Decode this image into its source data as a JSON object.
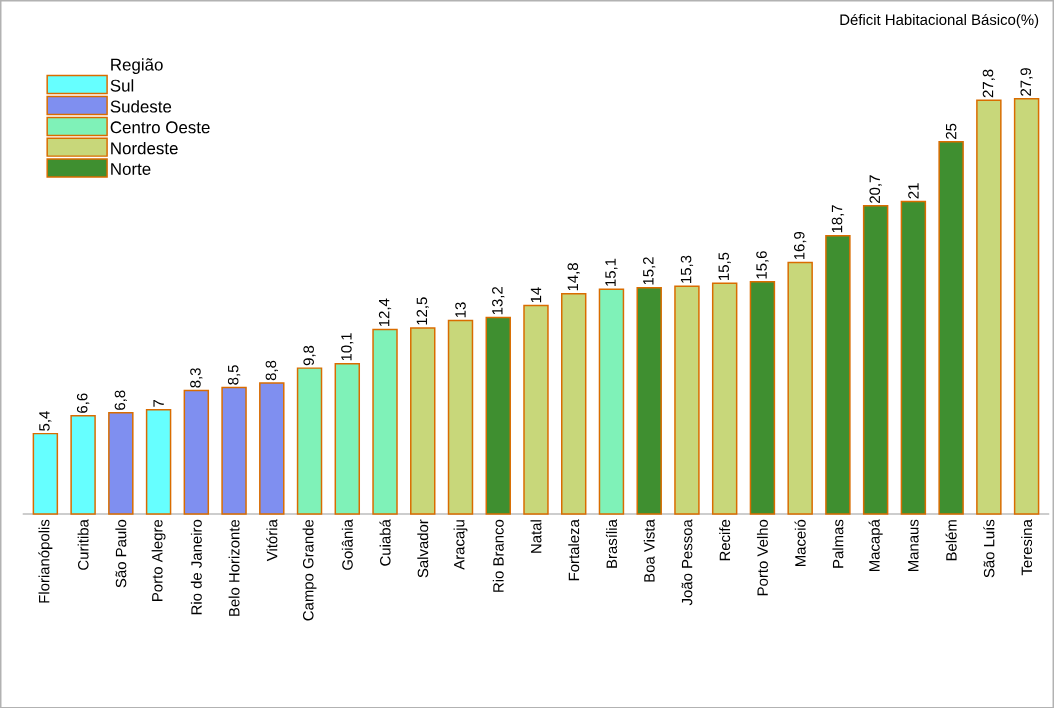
{
  "chart_data": {
    "type": "bar",
    "title": "Déficit Habitacional Básico(%)",
    "legend_title": "Região",
    "legend": "top left",
    "categories": [
      "Florianópolis",
      "Curitiba",
      "São Paulo",
      "Porto Alegre",
      "Rio de Janeiro",
      "Belo Horizonte",
      "Vitória",
      "Campo Grande",
      "Goiânia",
      "Cuiabá",
      "Salvador",
      "Aracaju",
      "Rio Branco",
      "Natal",
      "Fortaleza",
      "Brasília",
      "Boa Vista",
      "João Pessoa",
      "Recife",
      "Porto Velho",
      "Maceió",
      "Palmas",
      "Macapá",
      "Manaus",
      "Belém",
      "São Luís",
      "Teresina"
    ],
    "series": [
      {
        "name": "Sul",
        "color": "#66ffff",
        "values": [
          5.4,
          6.6,
          null,
          7,
          null,
          null,
          null,
          null,
          null,
          null,
          null,
          null,
          null,
          null,
          null,
          null,
          null,
          null,
          null,
          null,
          null,
          null,
          null,
          null,
          null,
          null,
          null
        ],
        "value_labels": [
          "5,4",
          "6,6",
          null,
          "7",
          null,
          null,
          null,
          null,
          null,
          null,
          null,
          null,
          null,
          null,
          null,
          null,
          null,
          null,
          null,
          null,
          null,
          null,
          null,
          null,
          null,
          null,
          null
        ]
      },
      {
        "name": "Sudeste",
        "color": "#7f8ff0",
        "values": [
          null,
          null,
          6.8,
          null,
          8.3,
          8.5,
          8.8,
          null,
          null,
          null,
          null,
          null,
          null,
          null,
          null,
          null,
          null,
          null,
          null,
          null,
          null,
          null,
          null,
          null,
          null,
          null,
          null
        ],
        "value_labels": [
          null,
          null,
          "6,8",
          null,
          "8,3",
          "8,5",
          "8,8",
          null,
          null,
          null,
          null,
          null,
          null,
          null,
          null,
          null,
          null,
          null,
          null,
          null,
          null,
          null,
          null,
          null,
          null,
          null,
          null
        ]
      },
      {
        "name": "Centro Oeste",
        "color": "#7ff2b8",
        "values": [
          null,
          null,
          null,
          null,
          null,
          null,
          null,
          9.8,
          10.1,
          12.4,
          null,
          null,
          null,
          null,
          null,
          15.1,
          null,
          null,
          null,
          null,
          null,
          null,
          null,
          null,
          null,
          null,
          null
        ],
        "value_labels": [
          null,
          null,
          null,
          null,
          null,
          null,
          null,
          "9,8",
          "10,1",
          "12,4",
          null,
          null,
          null,
          null,
          null,
          "15,1",
          null,
          null,
          null,
          null,
          null,
          null,
          null,
          null,
          null,
          null,
          null
        ]
      },
      {
        "name": "Nordeste",
        "color": "#c8d77a",
        "values": [
          null,
          null,
          null,
          null,
          null,
          null,
          null,
          null,
          null,
          null,
          12.5,
          13,
          null,
          14,
          14.8,
          null,
          null,
          15.3,
          15.5,
          null,
          16.9,
          null,
          null,
          null,
          null,
          27.8,
          27.9
        ],
        "value_labels": [
          null,
          null,
          null,
          null,
          null,
          null,
          null,
          null,
          null,
          null,
          "12,5",
          "13",
          null,
          "14",
          "14,8",
          null,
          null,
          "15,3",
          "15,5",
          null,
          "16,9",
          null,
          null,
          null,
          null,
          "27,8",
          "27,9"
        ]
      },
      {
        "name": "Norte",
        "color": "#3f8f30",
        "values": [
          null,
          null,
          null,
          null,
          null,
          null,
          null,
          null,
          null,
          null,
          null,
          null,
          13.2,
          null,
          null,
          null,
          15.2,
          null,
          null,
          15.6,
          null,
          18.7,
          20.7,
          21,
          25,
          null,
          null
        ],
        "value_labels": [
          null,
          null,
          null,
          null,
          null,
          null,
          null,
          null,
          null,
          null,
          null,
          null,
          "13,2",
          null,
          null,
          null,
          "15,2",
          null,
          null,
          "15,6",
          null,
          "18,7",
          "20,7",
          "21",
          "25",
          null,
          null
        ]
      }
    ]
  }
}
